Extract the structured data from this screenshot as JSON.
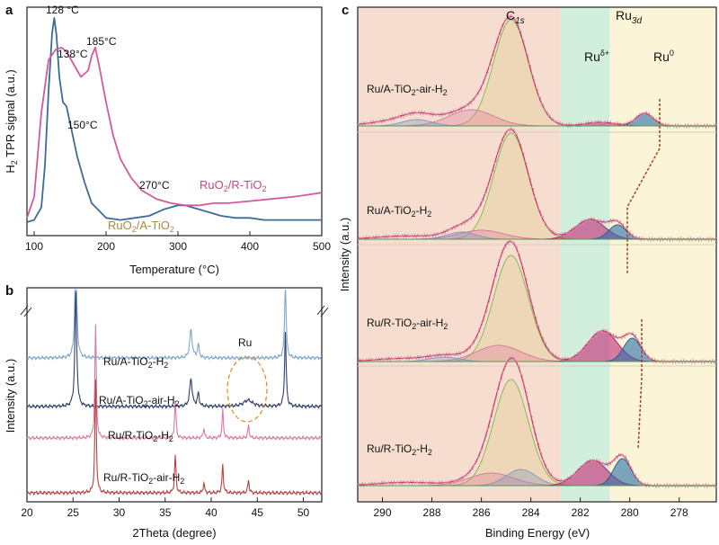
{
  "chart_data": [
    {
      "type": "line",
      "panel": "a",
      "xlabel": "Temperature (°C)",
      "ylabel": "H2 TPR signal (a.u.)",
      "xlim": [
        90,
        500
      ],
      "xticks": [
        100,
        200,
        300,
        400,
        500
      ],
      "series": [
        {
          "name": "RuO2/A-TiO2",
          "color": "#3d6b96",
          "x": [
            90,
            100,
            110,
            115,
            120,
            125,
            128,
            131,
            135,
            140,
            145,
            150,
            155,
            160,
            170,
            180,
            200,
            220,
            240,
            260,
            280,
            300,
            310,
            320,
            340,
            360,
            380,
            400,
            420,
            440,
            460,
            480,
            500
          ],
          "y": [
            0.03,
            0.04,
            0.1,
            0.3,
            0.65,
            0.93,
            1.0,
            0.92,
            0.72,
            0.6,
            0.58,
            0.5,
            0.42,
            0.34,
            0.22,
            0.12,
            0.05,
            0.04,
            0.05,
            0.06,
            0.09,
            0.11,
            0.11,
            0.1,
            0.08,
            0.06,
            0.05,
            0.05,
            0.04,
            0.04,
            0.04,
            0.04,
            0.04
          ]
        },
        {
          "name": "RuO2/R-TiO2",
          "color": "#d35a9b",
          "x": [
            90,
            100,
            110,
            120,
            130,
            138,
            145,
            155,
            165,
            175,
            180,
            185,
            190,
            200,
            210,
            220,
            235,
            250,
            270,
            290,
            310,
            330,
            350,
            370,
            400,
            430,
            460,
            480,
            500
          ],
          "y": [
            0.05,
            0.15,
            0.55,
            0.8,
            0.85,
            0.86,
            0.84,
            0.78,
            0.72,
            0.75,
            0.82,
            0.86,
            0.78,
            0.6,
            0.44,
            0.33,
            0.24,
            0.18,
            0.14,
            0.12,
            0.11,
            0.11,
            0.12,
            0.12,
            0.13,
            0.14,
            0.15,
            0.16,
            0.17
          ]
        }
      ],
      "annotations": [
        "128 °C",
        "138°C",
        "185°C",
        "150°C",
        "270°C"
      ],
      "legend_texts": {
        "ruo2_r_base": "RuO",
        "ruo2_r_sub": "2",
        "ruo2_r_rest": "/R-TiO",
        "ruo2_r_sub2": "2",
        "ruo2_a_base": "RuO",
        "ruo2_a_sub": "2",
        "ruo2_a_rest": "/A-TiO",
        "ruo2_a_sub2": "2"
      }
    },
    {
      "type": "line",
      "panel": "b",
      "xlabel": "2Theta (degree)",
      "ylabel": "Intensity (a.u.)",
      "xlim": [
        20,
        52
      ],
      "xticks": [
        20,
        25,
        30,
        35,
        40,
        45,
        50
      ],
      "series": [
        {
          "name": "Ru/A-TiO2-H2",
          "color": "#7fa6c9",
          "offset": 3
        },
        {
          "name": "Ru/A-TiO2-air-H2",
          "color": "#2f3f6e",
          "offset": 2
        },
        {
          "name": "Ru/R-TiO2-H2",
          "color": "#d97aa6",
          "offset": 1
        },
        {
          "name": "Ru/R-TiO2-air-H2",
          "color": "#b8413f",
          "offset": 0
        }
      ],
      "annotations": [
        "Ru"
      ]
    },
    {
      "type": "line",
      "panel": "c",
      "xlabel": "Binding Energy (eV)",
      "ylabel": "Intensity (a.u.)",
      "xlim": [
        291,
        276.5
      ],
      "xticks": [
        290,
        288,
        286,
        284,
        282,
        280,
        278
      ],
      "regions": [
        {
          "label": "C1s",
          "from": 291,
          "to": 282.8,
          "color": "#f6ddd0"
        },
        {
          "label": "Ruδ+",
          "from": 282.8,
          "to": 280.8,
          "color": "#d2eedd"
        },
        {
          "label": "Ru0",
          "from": 280.8,
          "to": 276.5,
          "color": "#fbf4d6"
        }
      ],
      "header_labels": {
        "c1s_base": "C",
        "c1s_sub": "1s",
        "ru3d_base": "Ru",
        "ru3d_sub": "3d",
        "rud_base": "Ru",
        "rud_sup": "δ+",
        "ru0_base": "Ru",
        "ru0_sup": "0"
      },
      "series": [
        {
          "name": "Ru/A-TiO2-air-H2",
          "c1s_peak": 284.8,
          "ru_peaks": [
            281.2,
            279.4
          ]
        },
        {
          "name": "Ru/A-TiO2-H2",
          "c1s_peak": 284.8,
          "ru_peaks": [
            281.6,
            280.5
          ]
        },
        {
          "name": "Ru/R-TiO2-air-H2",
          "c1s_peak": 284.8,
          "ru_peaks": [
            281.1,
            279.9
          ]
        },
        {
          "name": "Ru/R-TiO2-H2",
          "c1s_peak": 284.8,
          "ru_peaks": [
            281.5,
            280.3
          ]
        }
      ]
    }
  ],
  "panel_labels": {
    "a": "a",
    "b": "b",
    "c": "c"
  }
}
